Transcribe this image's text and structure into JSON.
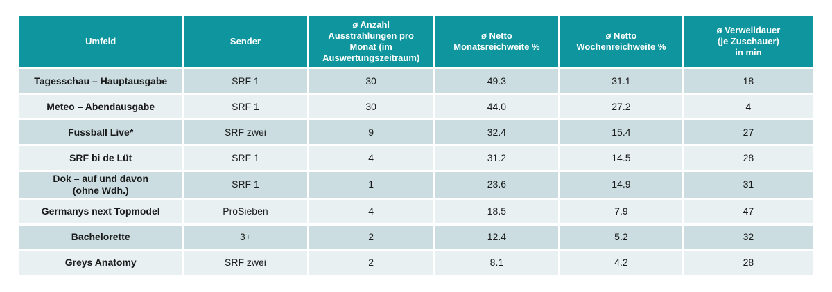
{
  "colors": {
    "header_bg": "#0e959e",
    "header_text": "#ffffff",
    "row_odd": "#cbdde1",
    "row_even": "#e8f0f2",
    "grid": "#ffffff",
    "cell_text": "#1a1a1a"
  },
  "table": {
    "columns": [
      {
        "key": "umfeld",
        "label": "Umfeld"
      },
      {
        "key": "sender",
        "label": "Sender"
      },
      {
        "key": "ausstrahlungen",
        "label": "ø Anzahl\nAusstrahlungen pro\nMonat (im\nAuswertungszeitraum)"
      },
      {
        "key": "monatsreichweite",
        "label": "ø Netto\nMonatsreichweite %"
      },
      {
        "key": "wochenreichweite",
        "label": "ø Netto\nWochenreichweite %"
      },
      {
        "key": "verweildauer",
        "label": "ø Verweildauer\n(je Zuschauer)\nin min"
      }
    ],
    "rows": [
      [
        "Tagesschau – Hauptausgabe",
        "SRF 1",
        "30",
        "49.3",
        "31.1",
        "18"
      ],
      [
        "Meteo – Abendausgabe",
        "SRF 1",
        "30",
        "44.0",
        "27.2",
        "4"
      ],
      [
        "Fussball Live*",
        "SRF zwei",
        "9",
        "32.4",
        "15.4",
        "27"
      ],
      [
        "SRF bi de Lüt",
        "SRF 1",
        "4",
        "31.2",
        "14.5",
        "28"
      ],
      [
        "Dok – auf und davon\n(ohne Wdh.)",
        "SRF 1",
        "1",
        "23.6",
        "14.9",
        "31"
      ],
      [
        "Germanys next Topmodel",
        "ProSieben",
        "4",
        "18.5",
        "7.9",
        "47"
      ],
      [
        "Bachelorette",
        "3+",
        "2",
        "12.4",
        "5.2",
        "32"
      ],
      [
        "Greys Anatomy",
        "SRF zwei",
        "2",
        "8.1",
        "4.2",
        "28"
      ]
    ]
  },
  "chart_data": {
    "type": "table",
    "title": "",
    "columns": [
      "Umfeld",
      "Sender",
      "ø Anzahl Ausstrahlungen pro Monat (im Auswertungszeitraum)",
      "ø Netto Monatsreichweite %",
      "ø Netto Wochenreichweite %",
      "ø Verweildauer (je Zuschauer) in min"
    ],
    "rows": [
      [
        "Tagesschau – Hauptausgabe",
        "SRF 1",
        30,
        49.3,
        31.1,
        18
      ],
      [
        "Meteo – Abendausgabe",
        "SRF 1",
        30,
        44.0,
        27.2,
        4
      ],
      [
        "Fussball Live*",
        "SRF zwei",
        9,
        32.4,
        15.4,
        27
      ],
      [
        "SRF bi de Lüt",
        "SRF 1",
        4,
        31.2,
        14.5,
        28
      ],
      [
        "Dok – auf und davon (ohne Wdh.)",
        "SRF 1",
        1,
        23.6,
        14.9,
        31
      ],
      [
        "Germanys next Topmodel",
        "ProSieben",
        4,
        18.5,
        7.9,
        47
      ],
      [
        "Bachelorette",
        "3+",
        2,
        12.4,
        5.2,
        32
      ],
      [
        "Greys Anatomy",
        "SRF zwei",
        2,
        8.1,
        4.2,
        28
      ]
    ]
  }
}
